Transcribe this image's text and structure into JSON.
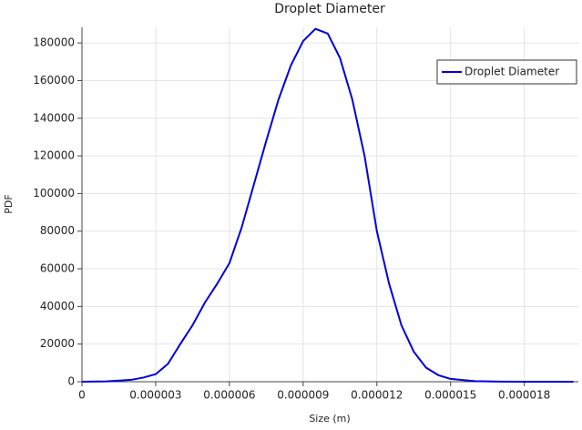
{
  "chart_data": {
    "type": "line",
    "title": "Droplet Diameter",
    "x_label": "Size (m)",
    "y_label": "PDF",
    "x": [
      0,
      1e-06,
      2e-06,
      2.5e-06,
      3e-06,
      3.5e-06,
      4e-06,
      4.5e-06,
      5e-06,
      5.5e-06,
      6e-06,
      6.5e-06,
      7e-06,
      7.5e-06,
      8e-06,
      8.5e-06,
      9e-06,
      9.5e-06,
      1e-05,
      1.05e-05,
      1.1e-05,
      1.15e-05,
      1.2e-05,
      1.25e-05,
      1.3e-05,
      1.35e-05,
      1.4e-05,
      1.45e-05,
      1.5e-05,
      1.6e-05,
      1.7e-05,
      1.8e-05,
      2e-05
    ],
    "series": [
      {
        "name": "Droplet Diameter",
        "color": "#0000dd",
        "values": [
          0,
          200,
          1000,
          2200,
          4000,
          9500,
          20000,
          30000,
          42000,
          52000,
          63000,
          82000,
          105000,
          128000,
          150000,
          168000,
          181000,
          187500,
          185000,
          172000,
          150000,
          120000,
          80000,
          52000,
          30000,
          16000,
          7500,
          3500,
          1500,
          300,
          50,
          0,
          0
        ]
      }
    ],
    "xlim": [
      0,
      2.02e-05
    ],
    "ylim": [
      0,
      188300
    ],
    "xticks": [
      0,
      3e-06,
      6e-06,
      9e-06,
      1.2e-05,
      1.5e-05,
      1.8e-05
    ],
    "yticks": [
      0,
      20000,
      40000,
      60000,
      80000,
      100000,
      120000,
      140000,
      160000,
      180000
    ],
    "grid": true,
    "legend": "top-right"
  }
}
